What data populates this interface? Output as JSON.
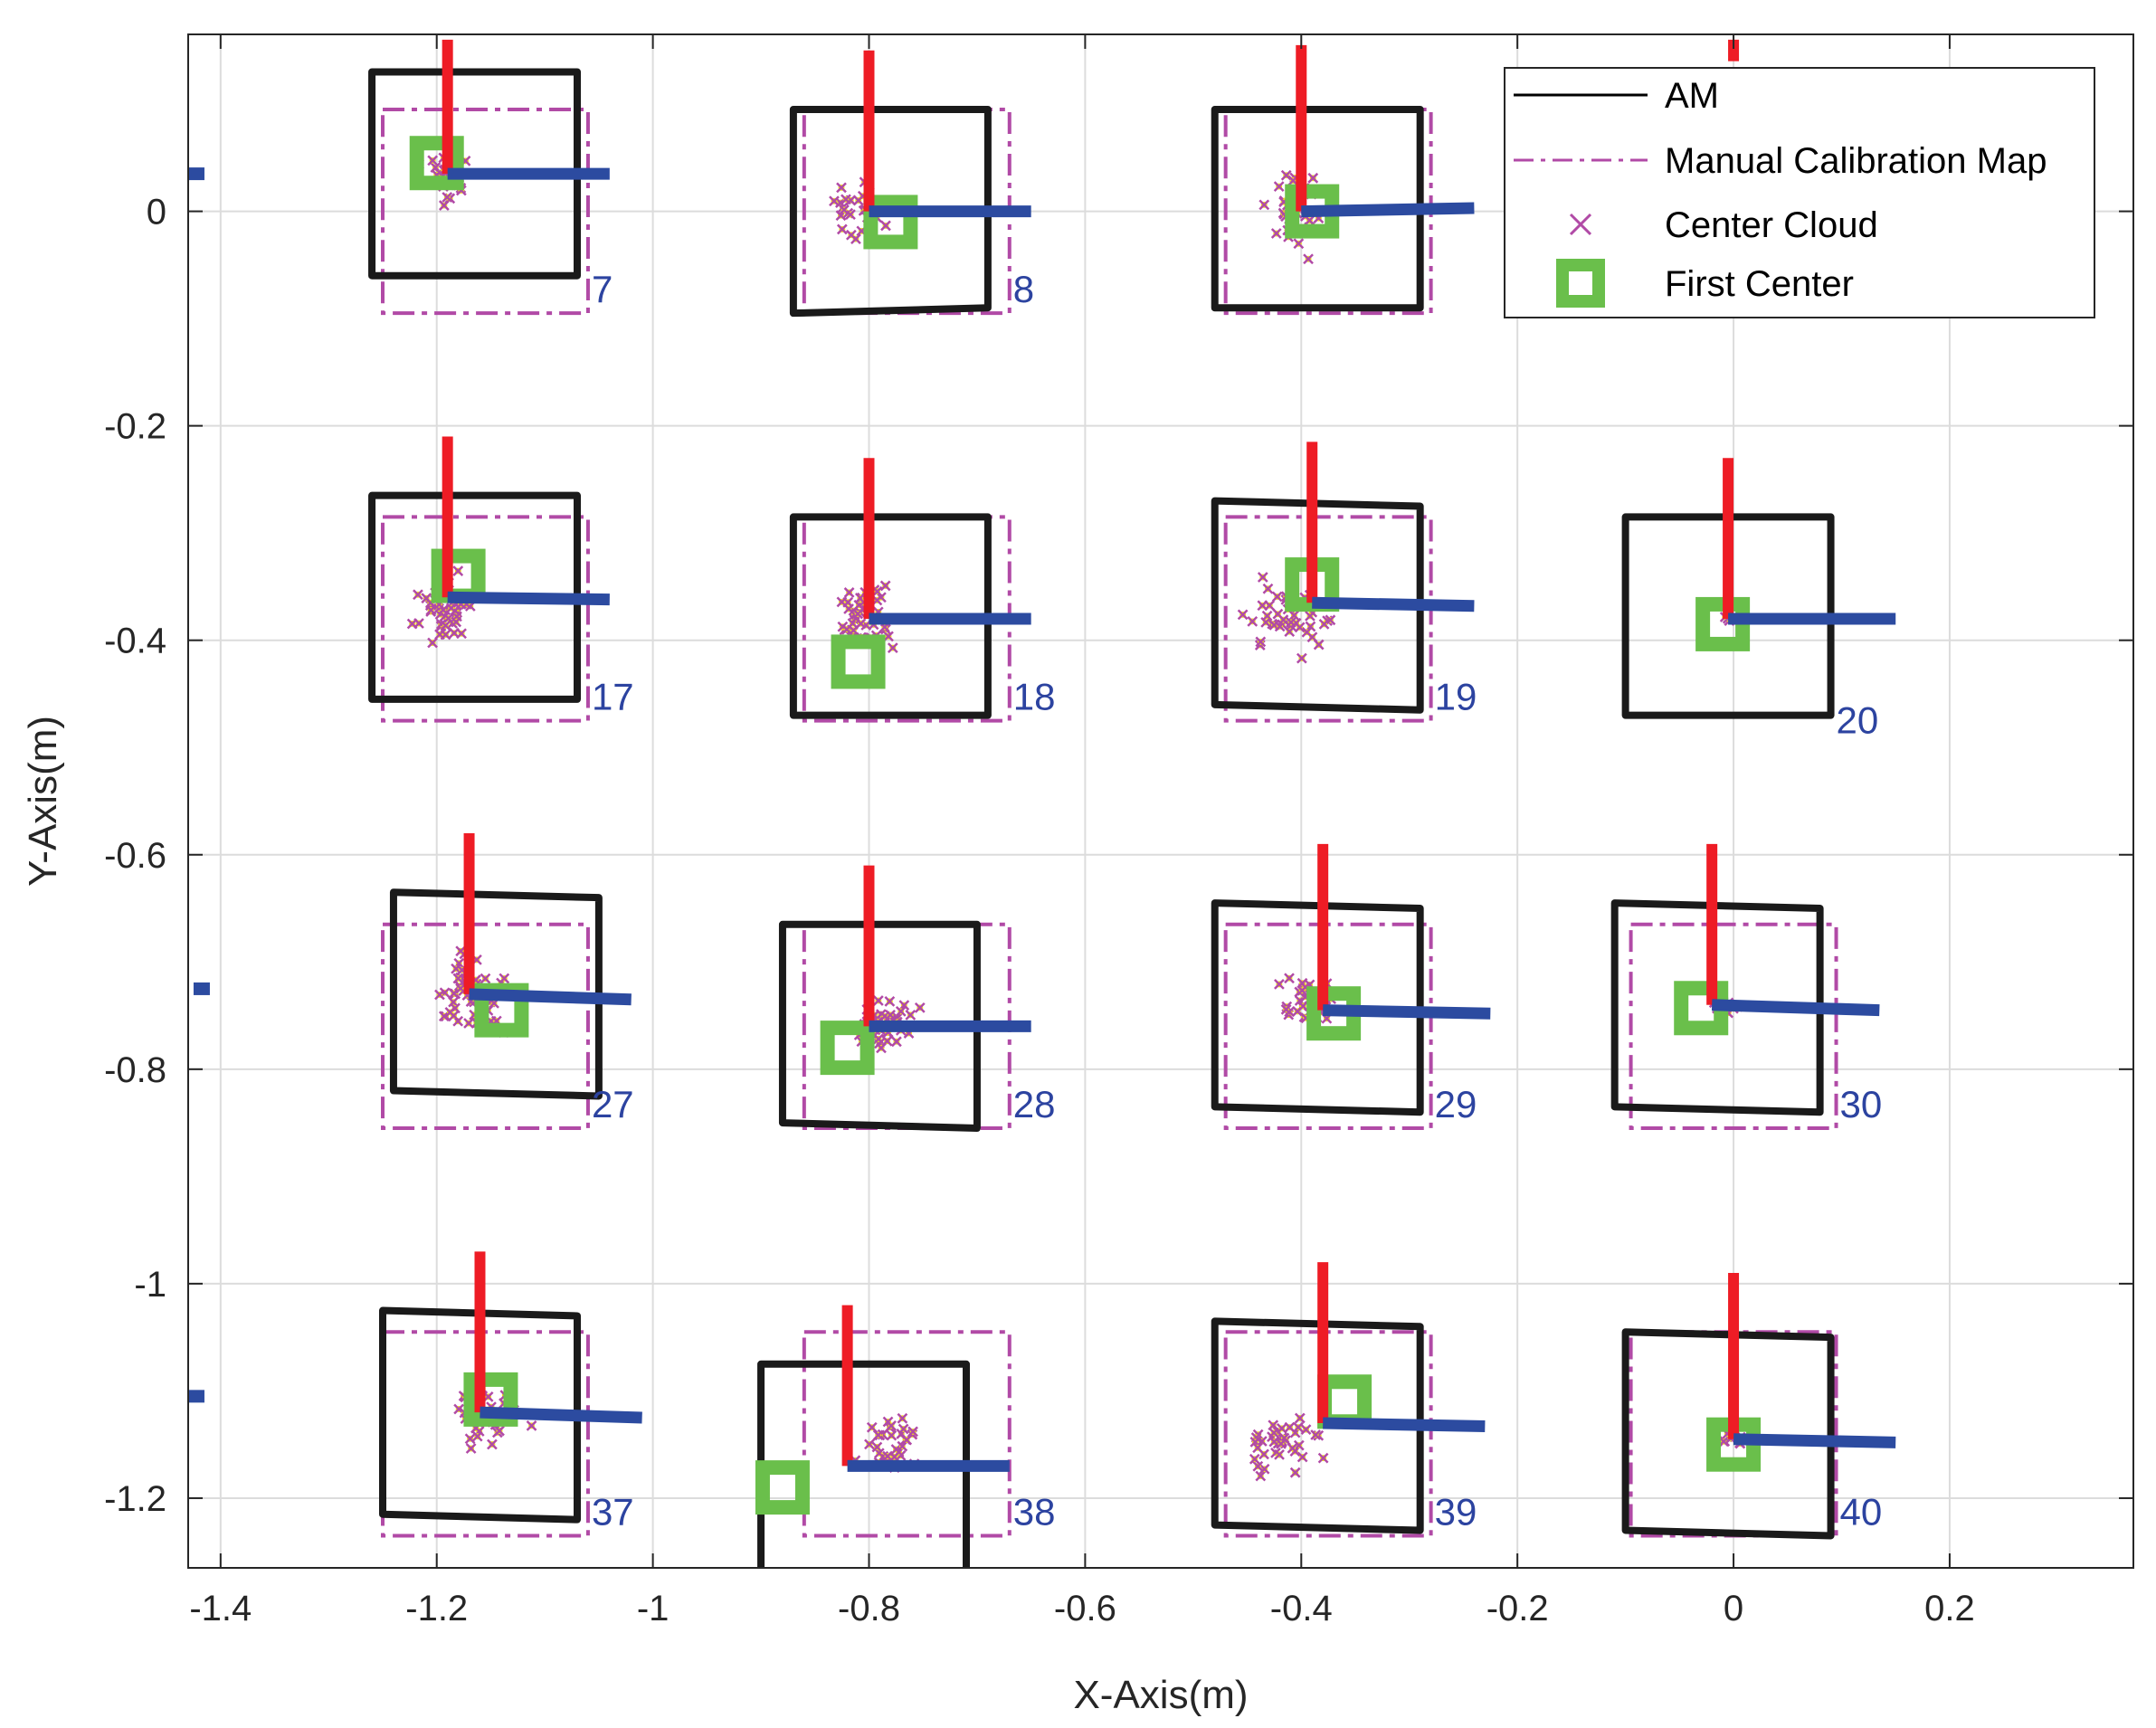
{
  "chart_data": {
    "type": "scatter",
    "xlabel": "X-Axis(m)",
    "ylabel": "Y-Axis(m)",
    "xlim": [
      -1.43,
      0.37
    ],
    "ylim": [
      -1.265,
      0.165
    ],
    "xticks": [
      -1.4,
      -1.2,
      -1,
      -0.8,
      -0.6,
      -0.4,
      -0.2,
      0,
      0.2
    ],
    "xtick_labels": [
      "-1.4",
      "-1.2",
      "-1",
      "-0.8",
      "-0.6",
      "-0.4",
      "-0.2",
      "0",
      "0.2"
    ],
    "yticks": [
      0,
      -0.2,
      -0.4,
      -0.6,
      -0.8,
      -1,
      -1.2
    ],
    "ytick_labels": [
      "0",
      "-0.2",
      "-0.4",
      "-0.6",
      "-0.8",
      "-1",
      "-1.2"
    ],
    "grid": true,
    "legend_position": "top-right",
    "legend": [
      {
        "label": "AM",
        "style": "solid-line",
        "color": "#000000"
      },
      {
        "label": "Manual Calibration Map",
        "style": "dash-dot-line",
        "color": "#b14aa6"
      },
      {
        "label": "Center Cloud",
        "style": "x-marker",
        "color": "#b14aa6"
      },
      {
        "label": "First Center",
        "style": "square-marker",
        "color": "#6abf4b"
      }
    ],
    "colors": {
      "am": "#1a1a1a",
      "manual": "#b14aa6",
      "cloud_x": "#b14aa6",
      "cloud_fill": "#f2e01c",
      "first_center": "#6abf4b",
      "y_axis_arrow": "#ee1c25",
      "x_axis_arrow": "#2c4ba0",
      "marker_label": "#2c43a0",
      "grid": "#dcdcdc"
    },
    "markers": [
      {
        "id": "7",
        "label": "7",
        "am": [
          [
            -1.26,
            0.13
          ],
          [
            -1.07,
            0.13
          ],
          [
            -1.07,
            -0.06
          ],
          [
            -1.26,
            -0.06
          ]
        ],
        "manual": [
          -1.25,
          0.095,
          -1.06,
          -0.095
        ],
        "origin": [
          -1.19,
          0.035
        ],
        "y_end": [
          -1.19,
          0.16
        ],
        "x_end": [
          -1.04,
          0.035
        ],
        "first_center": [
          -1.2,
          0.045
        ],
        "cloud": {
          "cx": -1.19,
          "cy": 0.03,
          "sx": 0.02,
          "sy": 0.03,
          "n": 30
        }
      },
      {
        "id": "8",
        "label": "8",
        "am": [
          [
            -0.87,
            0.095
          ],
          [
            -0.69,
            0.095
          ],
          [
            -0.69,
            -0.09
          ],
          [
            -0.87,
            -0.095
          ]
        ],
        "manual": [
          -0.86,
          0.095,
          -0.67,
          -0.095
        ],
        "origin": [
          -0.8,
          0.0
        ],
        "y_end": [
          -0.8,
          0.15
        ],
        "x_end": [
          -0.65,
          0.0
        ],
        "first_center": [
          -0.78,
          -0.01
        ],
        "cloud": {
          "cx": -0.81,
          "cy": 0.0,
          "sx": 0.025,
          "sy": 0.025,
          "n": 28
        }
      },
      {
        "id": "9",
        "label": "",
        "am": [
          [
            -0.48,
            0.095
          ],
          [
            -0.29,
            0.095
          ],
          [
            -0.29,
            -0.09
          ],
          [
            -0.48,
            -0.09
          ]
        ],
        "manual": [
          -0.47,
          0.095,
          -0.28,
          -0.095
        ],
        "origin": [
          -0.4,
          0.0
        ],
        "y_end": [
          -0.4,
          0.155
        ],
        "x_end": [
          -0.24,
          0.003
        ],
        "first_center": [
          -0.39,
          0.0
        ],
        "cloud": {
          "cx": -0.41,
          "cy": 0.0,
          "sx": 0.025,
          "sy": 0.035,
          "n": 30
        }
      },
      {
        "id": "10",
        "label": "",
        "am": null,
        "manual": null,
        "origin": [
          0.0,
          0.14
        ],
        "y_end": [
          0.0,
          0.16
        ],
        "x_end": null,
        "first_center": null,
        "cloud": null
      },
      {
        "id": "17",
        "label": "17",
        "am": [
          [
            -1.26,
            -0.265
          ],
          [
            -1.07,
            -0.265
          ],
          [
            -1.07,
            -0.455
          ],
          [
            -1.26,
            -0.455
          ]
        ],
        "manual": [
          -1.25,
          -0.285,
          -1.06,
          -0.475
        ],
        "origin": [
          -1.19,
          -0.36
        ],
        "y_end": [
          -1.19,
          -0.21
        ],
        "x_end": [
          -1.04,
          -0.362
        ],
        "first_center": [
          -1.18,
          -0.34
        ],
        "cloud": {
          "cx": -1.19,
          "cy": -0.37,
          "sx": 0.025,
          "sy": 0.028,
          "n": 45
        }
      },
      {
        "id": "18",
        "label": "18",
        "am": [
          [
            -0.87,
            -0.285
          ],
          [
            -0.69,
            -0.285
          ],
          [
            -0.69,
            -0.47
          ],
          [
            -0.87,
            -0.47
          ]
        ],
        "manual": [
          -0.86,
          -0.285,
          -0.67,
          -0.475
        ],
        "origin": [
          -0.8,
          -0.38
        ],
        "y_end": [
          -0.8,
          -0.23
        ],
        "x_end": [
          -0.65,
          -0.38
        ],
        "first_center": [
          -0.81,
          -0.42
        ],
        "cloud": {
          "cx": -0.8,
          "cy": -0.38,
          "sx": 0.028,
          "sy": 0.025,
          "n": 42
        }
      },
      {
        "id": "19",
        "label": "19",
        "am": [
          [
            -0.48,
            -0.27
          ],
          [
            -0.29,
            -0.275
          ],
          [
            -0.29,
            -0.465
          ],
          [
            -0.48,
            -0.46
          ]
        ],
        "manual": [
          -0.47,
          -0.285,
          -0.28,
          -0.475
        ],
        "origin": [
          -0.39,
          -0.365
        ],
        "y_end": [
          -0.39,
          -0.215
        ],
        "x_end": [
          -0.24,
          -0.368
        ],
        "first_center": [
          -0.39,
          -0.348
        ],
        "cloud": {
          "cx": -0.41,
          "cy": -0.38,
          "sx": 0.035,
          "sy": 0.03,
          "n": 40
        }
      },
      {
        "id": "20",
        "label": "20",
        "am": [
          [
            -0.1,
            -0.285
          ],
          [
            0.09,
            -0.285
          ],
          [
            0.09,
            -0.47
          ],
          [
            -0.1,
            -0.47
          ]
        ],
        "manual": null,
        "origin": [
          -0.005,
          -0.38
        ],
        "y_end": [
          -0.005,
          -0.23
        ],
        "x_end": [
          0.15,
          -0.38
        ],
        "first_center": [
          -0.01,
          -0.385
        ],
        "cloud": {
          "cx": -0.005,
          "cy": -0.38,
          "sx": 0.004,
          "sy": 0.006,
          "n": 3
        }
      },
      {
        "id": "27",
        "label": "27",
        "am": [
          [
            -1.24,
            -0.635
          ],
          [
            -1.05,
            -0.64
          ],
          [
            -1.05,
            -0.825
          ],
          [
            -1.24,
            -0.82
          ]
        ],
        "manual": [
          -1.25,
          -0.665,
          -1.06,
          -0.855
        ],
        "origin": [
          -1.17,
          -0.73
        ],
        "y_end": [
          -1.17,
          -0.58
        ],
        "x_end": [
          -1.02,
          -0.735
        ],
        "first_center": [
          -1.14,
          -0.745
        ],
        "cloud": {
          "cx": -1.17,
          "cy": -0.73,
          "sx": 0.03,
          "sy": 0.035,
          "n": 50
        }
      },
      {
        "id": "28",
        "label": "28",
        "am": [
          [
            -0.88,
            -0.665
          ],
          [
            -0.7,
            -0.665
          ],
          [
            -0.7,
            -0.855
          ],
          [
            -0.88,
            -0.85
          ]
        ],
        "manual": [
          -0.86,
          -0.665,
          -0.67,
          -0.855
        ],
        "origin": [
          -0.8,
          -0.76
        ],
        "y_end": [
          -0.8,
          -0.61
        ],
        "x_end": [
          -0.65,
          -0.76
        ],
        "first_center": [
          -0.82,
          -0.78
        ],
        "cloud": {
          "cx": -0.79,
          "cy": -0.76,
          "sx": 0.03,
          "sy": 0.022,
          "n": 45
        }
      },
      {
        "id": "29",
        "label": "29",
        "am": [
          [
            -0.48,
            -0.645
          ],
          [
            -0.29,
            -0.65
          ],
          [
            -0.29,
            -0.84
          ],
          [
            -0.48,
            -0.835
          ]
        ],
        "manual": [
          -0.47,
          -0.665,
          -0.28,
          -0.855
        ],
        "origin": [
          -0.38,
          -0.745
        ],
        "y_end": [
          -0.38,
          -0.59
        ],
        "x_end": [
          -0.225,
          -0.748
        ],
        "first_center": [
          -0.37,
          -0.748
        ],
        "cloud": {
          "cx": -0.4,
          "cy": -0.74,
          "sx": 0.03,
          "sy": 0.025,
          "n": 30
        }
      },
      {
        "id": "30",
        "label": "30",
        "am": [
          [
            -0.11,
            -0.645
          ],
          [
            0.08,
            -0.65
          ],
          [
            0.08,
            -0.84
          ],
          [
            -0.11,
            -0.835
          ]
        ],
        "manual": [
          -0.095,
          -0.665,
          0.095,
          -0.855
        ],
        "origin": [
          -0.02,
          -0.74
        ],
        "y_end": [
          -0.02,
          -0.59
        ],
        "x_end": [
          0.135,
          -0.745
        ],
        "first_center": [
          -0.03,
          -0.743
        ],
        "cloud": {
          "cx": -0.01,
          "cy": -0.745,
          "sx": 0.015,
          "sy": 0.01,
          "n": 10
        }
      },
      {
        "id": "37",
        "label": "37",
        "am": [
          [
            -1.25,
            -1.025
          ],
          [
            -1.07,
            -1.03
          ],
          [
            -1.07,
            -1.22
          ],
          [
            -1.25,
            -1.215
          ]
        ],
        "manual": [
          -1.25,
          -1.045,
          -1.06,
          -1.235
        ],
        "origin": [
          -1.16,
          -1.12
        ],
        "y_end": [
          -1.16,
          -0.97
        ],
        "x_end": [
          -1.01,
          -1.125
        ],
        "first_center": [
          -1.15,
          -1.108
        ],
        "cloud": {
          "cx": -1.15,
          "cy": -1.125,
          "sx": 0.03,
          "sy": 0.03,
          "n": 30
        }
      },
      {
        "id": "38",
        "label": "38",
        "am": [
          [
            -0.9,
            -1.075
          ],
          [
            -0.71,
            -1.075
          ],
          [
            -0.71,
            -1.3
          ],
          [
            -0.9,
            -1.3
          ]
        ],
        "manual": [
          -0.86,
          -1.045,
          -0.67,
          -1.235
        ],
        "origin": [
          -0.82,
          -1.17
        ],
        "y_end": [
          -0.82,
          -1.02
        ],
        "x_end": [
          -0.67,
          -1.17
        ],
        "first_center": [
          -0.88,
          -1.19
        ],
        "cloud": {
          "cx": -0.78,
          "cy": -1.15,
          "sx": 0.028,
          "sy": 0.025,
          "n": 35
        }
      },
      {
        "id": "39",
        "label": "39",
        "am": [
          [
            -0.48,
            -1.035
          ],
          [
            -0.29,
            -1.04
          ],
          [
            -0.29,
            -1.23
          ],
          [
            -0.48,
            -1.225
          ]
        ],
        "manual": [
          -0.47,
          -1.045,
          -0.28,
          -1.235
        ],
        "origin": [
          -0.38,
          -1.13
        ],
        "y_end": [
          -0.38,
          -0.98
        ],
        "x_end": [
          -0.23,
          -1.133
        ],
        "first_center": [
          -0.36,
          -1.11
        ],
        "cloud": {
          "cx": -0.42,
          "cy": -1.15,
          "sx": 0.035,
          "sy": 0.025,
          "n": 38
        }
      },
      {
        "id": "40",
        "label": "40",
        "am": [
          [
            -0.1,
            -1.045
          ],
          [
            0.09,
            -1.05
          ],
          [
            0.09,
            -1.235
          ],
          [
            -0.1,
            -1.23
          ]
        ],
        "manual": [
          -0.095,
          -1.045,
          0.095,
          -1.235
        ],
        "origin": [
          0.0,
          -1.145
        ],
        "y_end": [
          0.0,
          -0.99
        ],
        "x_end": [
          0.15,
          -1.148
        ],
        "first_center": [
          0.0,
          -1.15
        ],
        "cloud": {
          "cx": 0.0,
          "cy": -1.145,
          "sx": 0.012,
          "sy": 0.008,
          "n": 10
        }
      }
    ],
    "stray_marks": [
      [
        -1.425,
        0.035
      ],
      [
        -1.42,
        -0.725
      ],
      [
        -1.425,
        -1.105
      ]
    ]
  }
}
